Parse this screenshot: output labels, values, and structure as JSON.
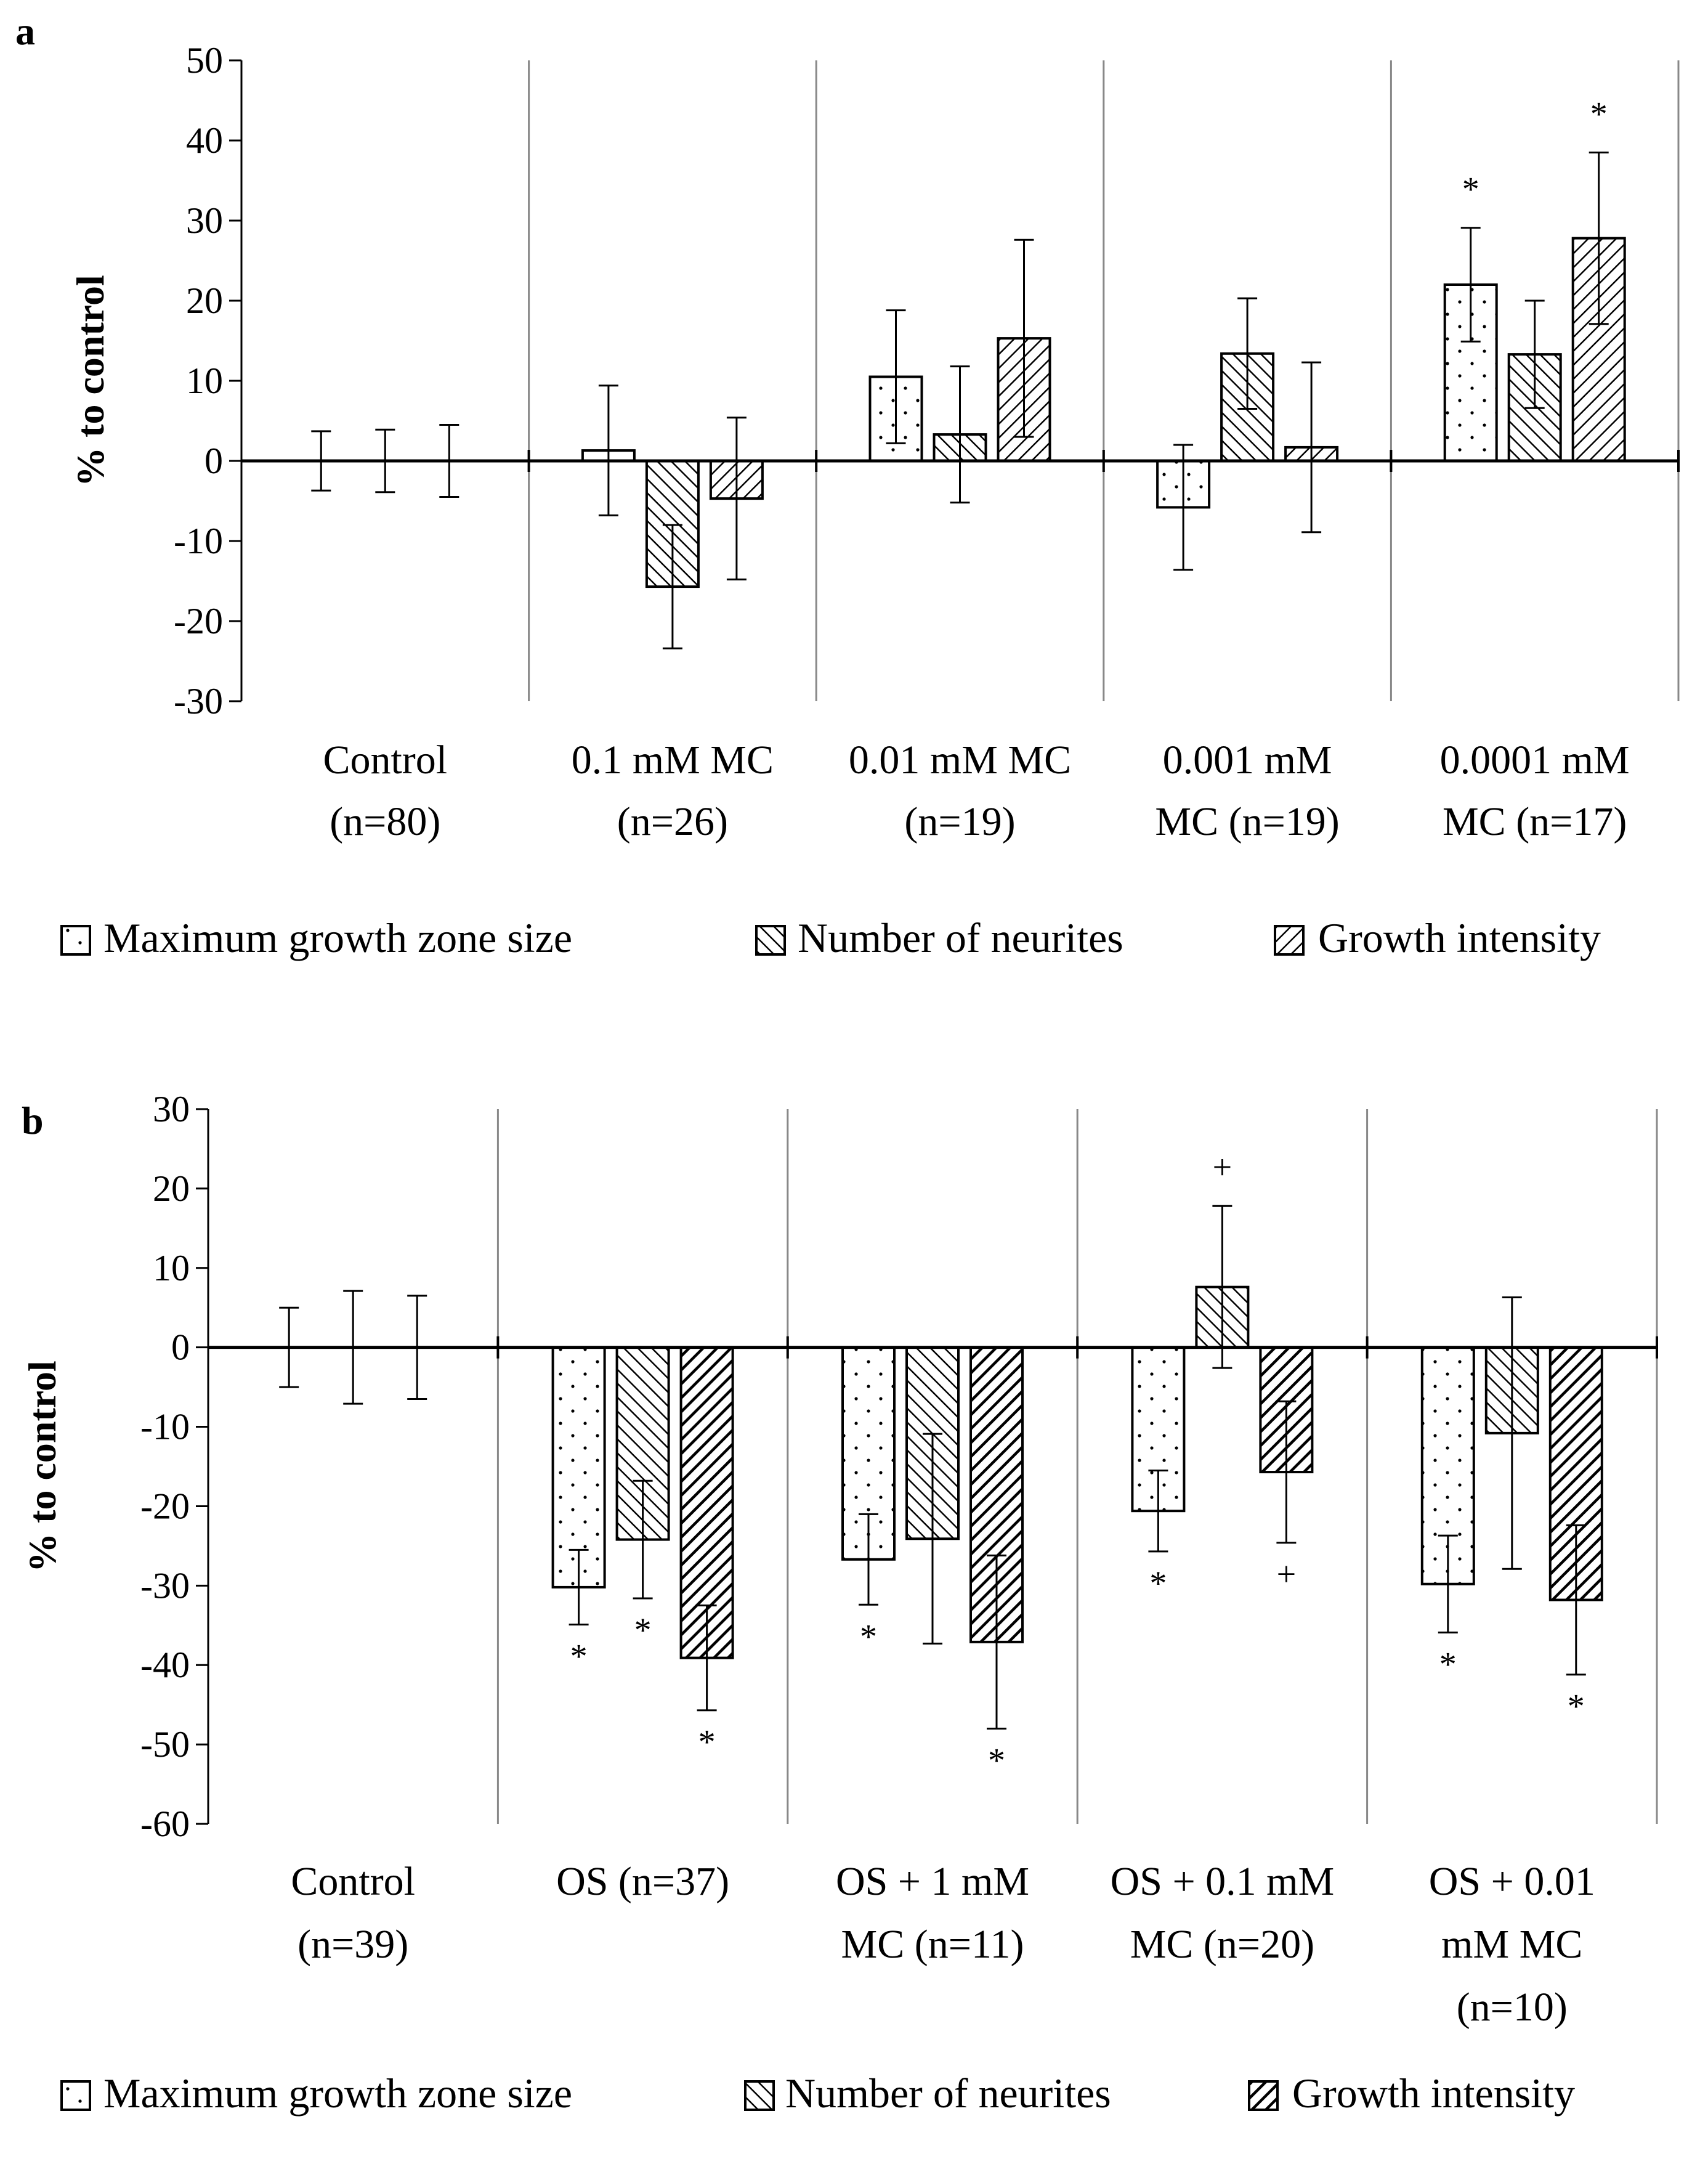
{
  "chart_data": [
    {
      "type": "bar",
      "panel_label": "a",
      "ylabel": "% to control",
      "ylim": [
        -30,
        50
      ],
      "y_ticks": [
        50,
        40,
        30,
        20,
        10,
        0,
        -10,
        -20,
        -30
      ],
      "categories": [
        [
          "Control",
          "(n=80)"
        ],
        [
          "0.1 mM MC",
          "(n=26)"
        ],
        [
          "0.01 mM MC",
          "(n=19)"
        ],
        [
          "0.001 mM",
          "MC (n=19)"
        ],
        [
          "0.0001 mM",
          "MC (n=17)"
        ]
      ],
      "legend_position": "bottom",
      "series": [
        {
          "name": "Maximum growth zone size",
          "pattern": "dots",
          "values": [
            0,
            1.3,
            10.5,
            -5.8,
            22
          ],
          "errors": [
            3.7,
            8.1,
            8.3,
            7.8,
            7.1
          ],
          "annotations": [
            "",
            "",
            "",
            "",
            "*"
          ]
        },
        {
          "name": "Number of neurites",
          "pattern": "hatch-back",
          "values": [
            0,
            -15.7,
            3.3,
            13.4,
            13.3
          ],
          "errors": [
            3.9,
            7.7,
            8.5,
            6.9,
            6.7
          ],
          "annotations": [
            "",
            "",
            "",
            "",
            ""
          ]
        },
        {
          "name": "Growth intensity",
          "pattern": "hatch-forward",
          "values": [
            0,
            -4.7,
            15.3,
            1.7,
            27.8
          ],
          "errors": [
            4.5,
            10.1,
            12.3,
            10.6,
            10.7
          ],
          "annotations": [
            "",
            "",
            "",
            "",
            "*"
          ]
        }
      ]
    },
    {
      "type": "bar",
      "panel_label": "b",
      "ylabel": "% to control",
      "ylim": [
        -60,
        30
      ],
      "y_ticks": [
        30,
        20,
        10,
        0,
        -10,
        -20,
        -30,
        -40,
        -50,
        -60
      ],
      "categories": [
        [
          "Control",
          "(n=39)"
        ],
        [
          "OS (n=37)"
        ],
        [
          "OS + 1 mM",
          "MC (n=11)"
        ],
        [
          "OS + 0.1 mM",
          "MC (n=20)"
        ],
        [
          "OS + 0.01",
          "mM MC",
          "(n=10)"
        ]
      ],
      "legend_position": "bottom",
      "series": [
        {
          "name": "Maximum growth zone size",
          "pattern": "dots",
          "values": [
            0,
            -30.2,
            -26.7,
            -20.6,
            -29.8
          ],
          "errors": [
            5,
            4.7,
            5.7,
            5.1,
            6.1
          ],
          "annotations": [
            "",
            "*",
            "*",
            "*",
            "*"
          ]
        },
        {
          "name": "Number of neurites",
          "pattern": "hatch-back",
          "values": [
            0,
            -24.2,
            -24.1,
            7.6,
            -10.8
          ],
          "errors": [
            7.1,
            7.4,
            13.2,
            10.2,
            17.1
          ],
          "annotations": [
            "",
            "*",
            "",
            "+",
            ""
          ]
        },
        {
          "name": "Growth intensity",
          "pattern": "hatch-dense",
          "values": [
            0,
            -39.1,
            -37.1,
            -15.7,
            -31.8
          ],
          "errors": [
            6.5,
            6.6,
            10.9,
            8.9,
            9.4
          ],
          "annotations": [
            "",
            "*",
            "*",
            "+",
            "*"
          ]
        }
      ]
    }
  ]
}
